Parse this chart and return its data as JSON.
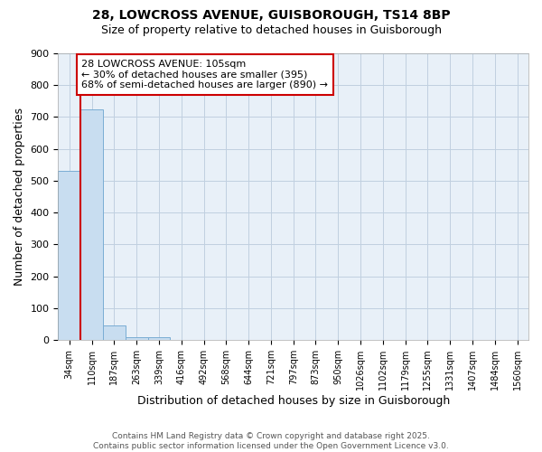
{
  "title1": "28, LOWCROSS AVENUE, GUISBOROUGH, TS14 8BP",
  "title2": "Size of property relative to detached houses in Guisborough",
  "xlabel": "Distribution of detached houses by size in Guisborough",
  "ylabel": "Number of detached properties",
  "categories": [
    "34sqm",
    "110sqm",
    "187sqm",
    "263sqm",
    "339sqm",
    "416sqm",
    "492sqm",
    "568sqm",
    "644sqm",
    "721sqm",
    "797sqm",
    "873sqm",
    "950sqm",
    "1026sqm",
    "1102sqm",
    "1179sqm",
    "1255sqm",
    "1331sqm",
    "1407sqm",
    "1484sqm",
    "1560sqm"
  ],
  "values": [
    530,
    725,
    47,
    10,
    8,
    0,
    0,
    0,
    0,
    0,
    0,
    0,
    0,
    0,
    0,
    0,
    0,
    0,
    0,
    0,
    0
  ],
  "bar_color": "#c8ddf0",
  "bar_edgecolor": "#7aadd4",
  "annotation_text": "28 LOWCROSS AVENUE: 105sqm\n← 30% of detached houses are smaller (395)\n68% of semi-detached houses are larger (890) →",
  "annotation_box_color": "#ffffff",
  "annotation_box_edgecolor": "#cc0000",
  "ylim": [
    0,
    900
  ],
  "yticks": [
    0,
    100,
    200,
    300,
    400,
    500,
    600,
    700,
    800,
    900
  ],
  "vline_color": "#cc0000",
  "grid_color": "#c0d0e0",
  "bg_color": "#e8f0f8",
  "footer": "Contains HM Land Registry data © Crown copyright and database right 2025.\nContains public sector information licensed under the Open Government Licence v3.0.",
  "title_fontsize": 10,
  "subtitle_fontsize": 9,
  "vline_x": 0.5
}
